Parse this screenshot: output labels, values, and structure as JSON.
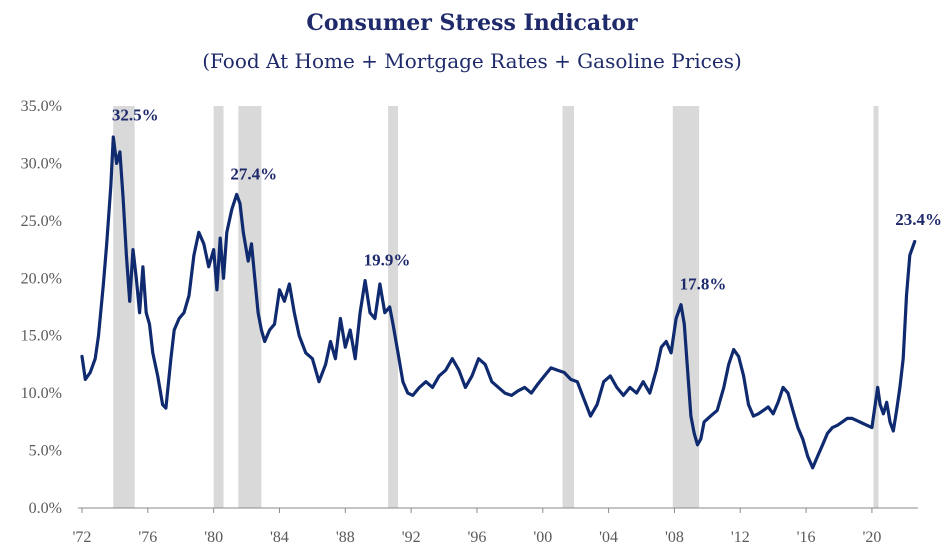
{
  "chart_data": {
    "type": "line",
    "title": "Consumer Stress Indicator",
    "subtitle": "(Food At Home + Mortgage Rates + Gasoline Prices)",
    "ylim": [
      0,
      35
    ],
    "yticks": [
      "0.0%",
      "5.0%",
      "10.0%",
      "15.0%",
      "20.0%",
      "25.0%",
      "30.0%",
      "35.0%"
    ],
    "ytick_values": [
      0,
      5,
      10,
      15,
      20,
      25,
      30,
      35
    ],
    "xlim": [
      1972,
      2022.8
    ],
    "xticks": [
      "'72",
      "'76",
      "'80",
      "'84",
      "'88",
      "'92",
      "'96",
      "'00",
      "'04",
      "'08",
      "'12",
      "'16",
      "'20"
    ],
    "xtick_values": [
      1972,
      1976,
      1980,
      1984,
      1988,
      1992,
      1996,
      2000,
      2004,
      2008,
      2012,
      2016,
      2020
    ],
    "grid": false,
    "line_color": "#0f2a6e",
    "recession_color": "#d9d9d9",
    "recessions": [
      [
        1973.9,
        1975.2
      ],
      [
        1980.0,
        1980.6
      ],
      [
        1981.5,
        1982.9
      ],
      [
        1990.6,
        1991.2
      ],
      [
        2001.2,
        2001.9
      ],
      [
        2007.9,
        2009.5
      ],
      [
        2020.1,
        2020.4
      ]
    ],
    "annotations": [
      {
        "label": "32.5%",
        "x": 1973.9,
        "y": 32.5
      },
      {
        "label": "27.4%",
        "x": 1981.1,
        "y": 27.4
      },
      {
        "label": "19.9%",
        "x": 1989.2,
        "y": 19.9
      },
      {
        "label": "17.8%",
        "x": 2008.4,
        "y": 17.8
      },
      {
        "label": "23.4%",
        "x": 2022.6,
        "y": 23.4
      }
    ],
    "series": [
      {
        "x": [
          1972.0,
          1972.2,
          1972.5,
          1972.8,
          1973.0,
          1973.3,
          1973.5,
          1973.75,
          1973.9,
          1974.1,
          1974.3,
          1974.5,
          1974.7,
          1974.9,
          1975.1,
          1975.3,
          1975.5,
          1975.7,
          1975.9,
          1976.1,
          1976.3,
          1976.6,
          1976.9,
          1977.1,
          1977.4,
          1977.6,
          1977.9,
          1978.2,
          1978.5,
          1978.8,
          1979.1,
          1979.4,
          1979.7,
          1980.0,
          1980.2,
          1980.4,
          1980.6,
          1980.8,
          1981.1,
          1981.4,
          1981.6,
          1981.8,
          1982.1,
          1982.3,
          1982.5,
          1982.7,
          1982.9,
          1983.1,
          1983.4,
          1983.7,
          1984.0,
          1984.3,
          1984.6,
          1984.9,
          1985.2,
          1985.6,
          1986.0,
          1986.4,
          1986.8,
          1987.1,
          1987.4,
          1987.7,
          1988.0,
          1988.3,
          1988.6,
          1988.9,
          1989.2,
          1989.5,
          1989.8,
          1990.1,
          1990.4,
          1990.7,
          1990.9,
          1991.2,
          1991.5,
          1991.8,
          1992.1,
          1992.5,
          1992.9,
          1993.3,
          1993.7,
          1994.1,
          1994.5,
          1994.9,
          1995.3,
          1995.7,
          1996.1,
          1996.5,
          1996.9,
          1997.3,
          1997.7,
          1998.1,
          1998.5,
          1998.9,
          1999.3,
          1999.7,
          2000.1,
          2000.5,
          2000.9,
          2001.3,
          2001.7,
          2002.1,
          2002.5,
          2002.9,
          2003.3,
          2003.7,
          2004.1,
          2004.5,
          2004.9,
          2005.3,
          2005.7,
          2006.1,
          2006.5,
          2006.9,
          2007.2,
          2007.5,
          2007.8,
          2008.1,
          2008.4,
          2008.6,
          2008.8,
          2009.0,
          2009.2,
          2009.4,
          2009.6,
          2009.8,
          2010.2,
          2010.6,
          2011.0,
          2011.3,
          2011.6,
          2011.9,
          2012.2,
          2012.5,
          2012.8,
          2013.1,
          2013.4,
          2013.7,
          2014.0,
          2014.3,
          2014.6,
          2014.9,
          2015.2,
          2015.5,
          2015.8,
          2016.1,
          2016.4,
          2016.7,
          2017.0,
          2017.3,
          2017.6,
          2017.9,
          2018.2,
          2018.5,
          2018.8,
          2019.1,
          2019.4,
          2019.7,
          2020.0,
          2020.2,
          2020.35,
          2020.5,
          2020.7,
          2020.9,
          2021.1,
          2021.3,
          2021.5,
          2021.7,
          2021.9,
          2022.1,
          2022.3,
          2022.6
        ],
        "y": [
          13.2,
          11.2,
          11.8,
          13.0,
          15.0,
          19.5,
          23.0,
          28.0,
          32.3,
          30.0,
          31.0,
          27.0,
          22.0,
          18.0,
          22.5,
          20.0,
          17.0,
          21.0,
          17.0,
          16.0,
          13.5,
          11.5,
          9.0,
          8.7,
          13.0,
          15.5,
          16.5,
          17.0,
          18.5,
          22.0,
          24.0,
          23.0,
          21.0,
          22.5,
          19.0,
          23.5,
          20.0,
          24.0,
          26.0,
          27.3,
          26.5,
          24.0,
          21.5,
          23.0,
          20.0,
          17.0,
          15.5,
          14.5,
          15.5,
          16.0,
          19.0,
          18.0,
          19.5,
          17.0,
          15.0,
          13.5,
          13.0,
          11.0,
          12.5,
          14.5,
          13.0,
          16.5,
          14.0,
          15.5,
          13.0,
          17.0,
          19.8,
          17.0,
          16.5,
          19.5,
          17.0,
          17.5,
          16.0,
          13.5,
          11.0,
          10.0,
          9.8,
          10.5,
          11.0,
          10.5,
          11.5,
          12.0,
          13.0,
          12.0,
          10.5,
          11.5,
          13.0,
          12.5,
          11.0,
          10.5,
          10.0,
          9.8,
          10.2,
          10.5,
          10.0,
          10.8,
          11.5,
          12.2,
          12.0,
          11.8,
          11.2,
          11.0,
          9.5,
          8.0,
          9.0,
          11.0,
          11.5,
          10.5,
          9.8,
          10.5,
          10.0,
          11.0,
          10.0,
          12.0,
          14.0,
          14.5,
          13.5,
          16.5,
          17.7,
          16.0,
          12.0,
          8.0,
          6.5,
          5.5,
          6.0,
          7.5,
          8.0,
          8.5,
          10.5,
          12.5,
          13.8,
          13.2,
          11.5,
          9.0,
          8.0,
          8.2,
          8.5,
          8.8,
          8.2,
          9.2,
          10.5,
          10.0,
          8.5,
          7.0,
          6.0,
          4.5,
          3.5,
          4.5,
          5.5,
          6.5,
          7.0,
          7.2,
          7.5,
          7.8,
          7.8,
          7.6,
          7.4,
          7.2,
          7.0,
          9.0,
          10.5,
          9.0,
          8.2,
          9.2,
          7.5,
          6.7,
          8.5,
          10.5,
          13.0,
          18.5,
          22.0,
          23.2
        ]
      }
    ]
  }
}
